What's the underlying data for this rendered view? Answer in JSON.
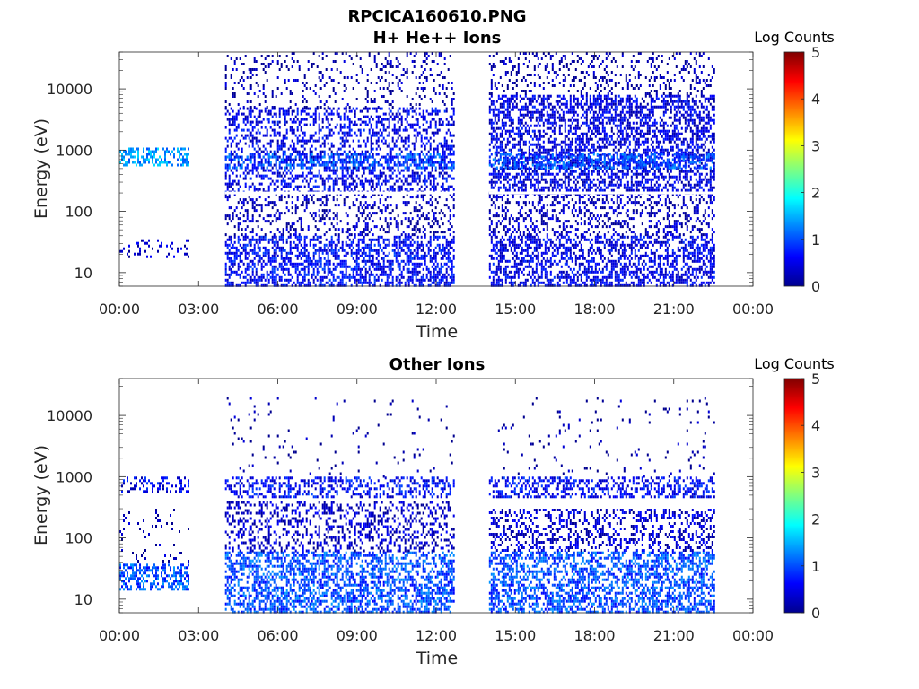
{
  "figure": {
    "title": "RPCICA160610.PNG"
  },
  "chart_data": [
    {
      "type": "heatmap",
      "title": "H+ He++ Ions",
      "xlabel": "Time",
      "ylabel": "Energy (eV)",
      "x_tick_labels": [
        "00:00",
        "03:00",
        "06:00",
        "09:00",
        "12:00",
        "15:00",
        "18:00",
        "21:00",
        "00:00"
      ],
      "x_ticks_hours": [
        0,
        3,
        6,
        9,
        12,
        15,
        18,
        21,
        24
      ],
      "xlim_hours": [
        0,
        24
      ],
      "y_scale": "log",
      "ylim": [
        6,
        40000
      ],
      "y_ticks": [
        10,
        100,
        1000,
        10000
      ],
      "y_tick_labels": [
        "10",
        "100",
        "1000",
        "10000"
      ],
      "colorbar": {
        "label": "Log Counts",
        "range": [
          0,
          5
        ],
        "ticks": [
          0,
          1,
          2,
          3,
          4,
          5
        ],
        "tick_labels": [
          "0",
          "1",
          "2",
          "3",
          "4",
          "5"
        ],
        "colormap": "jet"
      },
      "data_intervals_hours": [
        [
          0.0,
          2.65
        ],
        [
          4.0,
          12.65
        ],
        [
          14.0,
          22.55
        ]
      ],
      "bands": [
        {
          "t": [
            0.0,
            2.65
          ],
          "e": [
            550,
            1100
          ],
          "level": 1.4,
          "density": 0.9
        },
        {
          "t": [
            0.0,
            2.65
          ],
          "e": [
            18,
            35
          ],
          "level": 0.3,
          "density": 0.35
        },
        {
          "t": [
            4.0,
            12.65
          ],
          "e": [
            6,
            40
          ],
          "level": 0.6,
          "density": 0.95
        },
        {
          "t": [
            4.0,
            12.65
          ],
          "e": [
            40,
            200
          ],
          "level": 0.2,
          "density": 0.45
        },
        {
          "t": [
            4.0,
            12.65
          ],
          "e": [
            200,
            5000
          ],
          "level": 0.5,
          "density": 0.7
        },
        {
          "t": [
            4.0,
            12.65
          ],
          "e": [
            500,
            900
          ],
          "level": 1.0,
          "density": 0.8
        },
        {
          "t": [
            4.0,
            12.65
          ],
          "e": [
            5000,
            40000
          ],
          "level": 0.1,
          "density": 0.25
        },
        {
          "t": [
            14.0,
            22.55
          ],
          "e": [
            6,
            40
          ],
          "level": 0.5,
          "density": 0.9
        },
        {
          "t": [
            14.0,
            22.55
          ],
          "e": [
            40,
            200
          ],
          "level": 0.25,
          "density": 0.55
        },
        {
          "t": [
            14.0,
            22.55
          ],
          "e": [
            200,
            8000
          ],
          "level": 0.45,
          "density": 0.92
        },
        {
          "t": [
            14.0,
            22.55
          ],
          "e": [
            500,
            900
          ],
          "level": 1.0,
          "density": 0.9
        },
        {
          "t": [
            14.0,
            22.55
          ],
          "e": [
            8000,
            40000
          ],
          "level": 0.1,
          "density": 0.35
        }
      ],
      "gap_line_energy_ev": 200
    },
    {
      "type": "heatmap",
      "title": "Other Ions",
      "xlabel": "Time",
      "ylabel": "Energy (eV)",
      "x_tick_labels": [
        "00:00",
        "03:00",
        "06:00",
        "09:00",
        "12:00",
        "15:00",
        "18:00",
        "21:00",
        "00:00"
      ],
      "x_ticks_hours": [
        0,
        3,
        6,
        9,
        12,
        15,
        18,
        21,
        24
      ],
      "xlim_hours": [
        0,
        24
      ],
      "y_scale": "log",
      "ylim": [
        6,
        40000
      ],
      "y_ticks": [
        10,
        100,
        1000,
        10000
      ],
      "y_tick_labels": [
        "10",
        "100",
        "1000",
        "10000"
      ],
      "colorbar": {
        "label": "Log Counts",
        "range": [
          0,
          5
        ],
        "ticks": [
          0,
          1,
          2,
          3,
          4,
          5
        ],
        "tick_labels": [
          "0",
          "1",
          "2",
          "3",
          "4",
          "5"
        ],
        "colormap": "jet"
      },
      "data_intervals_hours": [
        [
          0.0,
          2.65
        ],
        [
          4.0,
          12.65
        ],
        [
          14.0,
          22.55
        ]
      ],
      "bands": [
        {
          "t": [
            0.0,
            2.65
          ],
          "e": [
            600,
            1000
          ],
          "level": 0.5,
          "density": 0.6
        },
        {
          "t": [
            0.0,
            2.65
          ],
          "e": [
            15,
            38
          ],
          "level": 1.0,
          "density": 0.9
        },
        {
          "t": [
            0.0,
            2.65
          ],
          "e": [
            38,
            300
          ],
          "level": 0.1,
          "density": 0.1
        },
        {
          "t": [
            4.0,
            12.65
          ],
          "e": [
            6,
            60
          ],
          "level": 1.0,
          "density": 0.95
        },
        {
          "t": [
            4.0,
            12.65
          ],
          "e": [
            60,
            400
          ],
          "level": 0.3,
          "density": 0.55
        },
        {
          "t": [
            4.0,
            12.65
          ],
          "e": [
            450,
            1000
          ],
          "level": 0.6,
          "density": 0.75
        },
        {
          "t": [
            4.0,
            12.65
          ],
          "e": [
            1000,
            20000
          ],
          "level": 0.05,
          "density": 0.05
        },
        {
          "t": [
            14.0,
            22.55
          ],
          "e": [
            6,
            60
          ],
          "level": 1.0,
          "density": 0.95
        },
        {
          "t": [
            14.0,
            22.55
          ],
          "e": [
            60,
            300
          ],
          "level": 0.35,
          "density": 0.6
        },
        {
          "t": [
            14.0,
            22.55
          ],
          "e": [
            450,
            1000
          ],
          "level": 0.6,
          "density": 0.8
        },
        {
          "t": [
            14.0,
            22.55
          ],
          "e": [
            1000,
            20000
          ],
          "level": 0.05,
          "density": 0.06
        }
      ]
    }
  ]
}
